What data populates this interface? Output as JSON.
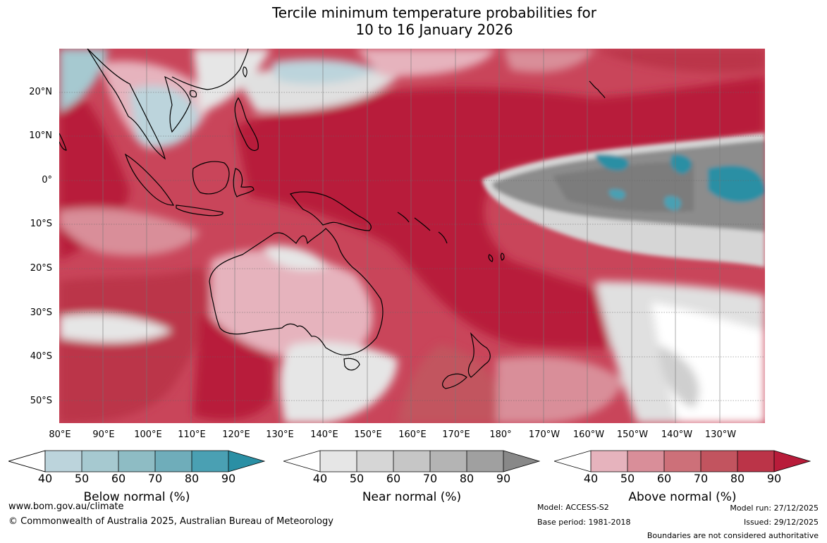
{
  "title": {
    "line1": "Tercile minimum temperature probabilities for",
    "line2": "10 to 16 January 2026"
  },
  "map": {
    "lat_labels": [
      "20°N",
      "10°N",
      "0°",
      "10°S",
      "20°S",
      "30°S",
      "40°S",
      "50°S"
    ],
    "lon_labels": [
      "80°E",
      "90°E",
      "100°E",
      "110°E",
      "120°E",
      "130°E",
      "140°E",
      "150°E",
      "160°E",
      "170°E",
      "180°",
      "170°W",
      "160°W",
      "150°W",
      "140°W",
      "130°W"
    ]
  },
  "colorbars": {
    "below": {
      "title": "Below normal (%)",
      "ticks": [
        "40",
        "50",
        "60",
        "70",
        "80",
        "90"
      ],
      "colors": [
        "#bcd4dc",
        "#a6c9d0",
        "#8ebcc4",
        "#6fadba",
        "#4aa0b3",
        "#2a8fa4"
      ]
    },
    "near": {
      "title": "Near normal (%)",
      "ticks": [
        "40",
        "50",
        "60",
        "70",
        "80",
        "90"
      ],
      "colors": [
        "#e6e6e6",
        "#d6d6d6",
        "#c6c6c6",
        "#b4b4b4",
        "#a0a0a0",
        "#888888"
      ]
    },
    "above": {
      "title": "Above normal (%)",
      "ticks": [
        "40",
        "50",
        "60",
        "70",
        "80",
        "90"
      ],
      "colors": [
        "#e6b3bd",
        "#d98e99",
        "#cd7079",
        "#c2545f",
        "#bb3448",
        "#b81c3a"
      ]
    }
  },
  "footer": {
    "url": "www.bom.gov.au/climate",
    "copyright": "© Commonwealth of Australia 2025, Australian Bureau of Meteorology",
    "model": "Model: ACCESS-S2",
    "base_period": "Base period: 1981-2018",
    "model_run": "Model run: 27/12/2025",
    "issued": "Issued: 29/12/2025",
    "disclaimer": "Boundaries are not considered authoritative"
  }
}
